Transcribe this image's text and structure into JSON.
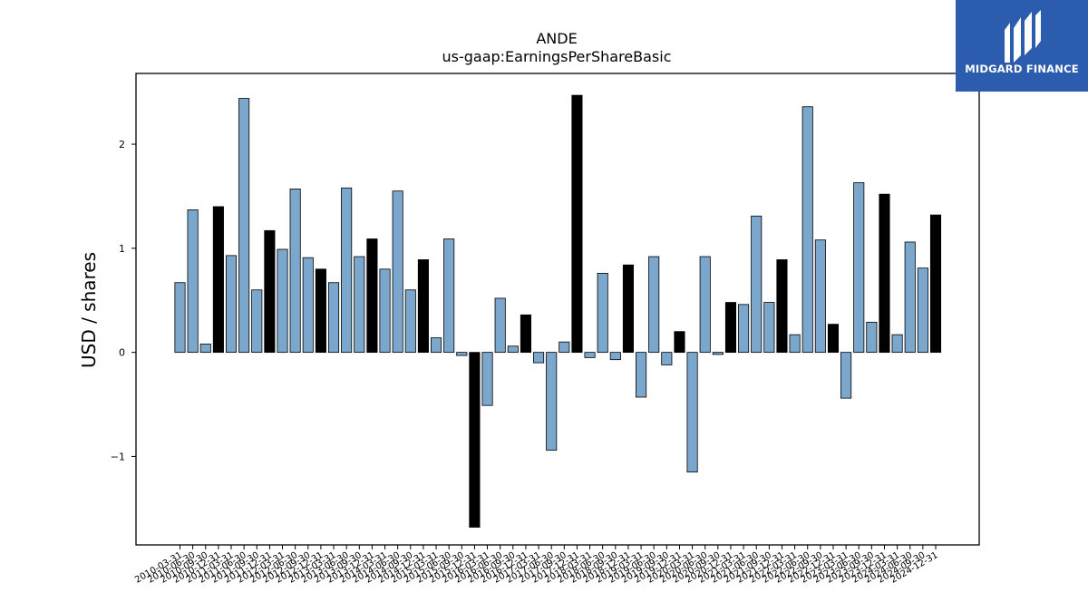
{
  "logo": {
    "text": "MIDGARD FINANCE",
    "icon": "midgard-logo-icon"
  },
  "chart_data": {
    "type": "bar",
    "title": "ANDE",
    "subtitle": "us-gaap:EarningsPerShareBasic",
    "ylabel": "USD / shares",
    "xlabel": "",
    "ylim": [
      -1.85,
      2.68
    ],
    "yticks": [
      -1,
      0,
      1,
      2
    ],
    "grid": false,
    "colors": {
      "quarterly": "#7ba7cc",
      "annual": "#000000",
      "edge": "#000000"
    },
    "categories": [
      "2010-03-31",
      "2010-06-30",
      "2010-09-30",
      "2010-12-31",
      "2011-03-31",
      "2011-06-30",
      "2011-09-30",
      "2011-12-31",
      "2012-03-31",
      "2012-06-30",
      "2012-09-30",
      "2012-12-31",
      "2013-03-31",
      "2013-06-30",
      "2013-09-30",
      "2013-12-31",
      "2014-03-31",
      "2014-06-30",
      "2014-09-30",
      "2014-12-31",
      "2015-03-31",
      "2015-06-30",
      "2015-09-30",
      "2015-12-31",
      "2016-03-31",
      "2016-06-30",
      "2016-09-30",
      "2016-12-31",
      "2017-03-31",
      "2017-06-30",
      "2017-09-30",
      "2017-12-31",
      "2018-03-31",
      "2018-06-30",
      "2018-09-30",
      "2018-12-31",
      "2019-03-31",
      "2019-06-30",
      "2019-09-30",
      "2019-12-31",
      "2020-03-31",
      "2020-06-30",
      "2020-09-30",
      "2020-12-31",
      "2021-03-31",
      "2021-06-30",
      "2021-09-30",
      "2021-12-31",
      "2022-03-31",
      "2022-06-30",
      "2022-09-30",
      "2022-12-31",
      "2023-03-31",
      "2023-06-30",
      "2023-09-30",
      "2023-12-31",
      "2024-03-31",
      "2024-06-30",
      "2024-09-30",
      "2024-12-31"
    ],
    "values": [
      0.67,
      1.37,
      0.08,
      1.4,
      0.93,
      2.44,
      0.6,
      1.17,
      0.99,
      1.57,
      0.91,
      0.8,
      0.67,
      1.58,
      0.92,
      1.09,
      0.8,
      1.55,
      0.6,
      0.89,
      0.14,
      1.09,
      -0.03,
      -1.68,
      -0.51,
      0.52,
      0.06,
      0.36,
      -0.1,
      -0.94,
      0.1,
      2.47,
      -0.05,
      0.76,
      -0.07,
      0.84,
      -0.43,
      0.92,
      -0.12,
      0.2,
      -1.15,
      0.92,
      -0.02,
      0.48,
      0.46,
      1.31,
      0.48,
      0.89,
      0.17,
      2.36,
      1.08,
      0.27,
      -0.44,
      1.63,
      0.29,
      1.52,
      0.17,
      1.06,
      0.81,
      1.32
    ],
    "annual_flags": [
      0,
      0,
      0,
      1,
      0,
      0,
      0,
      1,
      0,
      0,
      0,
      1,
      0,
      0,
      0,
      1,
      0,
      0,
      0,
      1,
      0,
      0,
      0,
      1,
      0,
      0,
      0,
      1,
      0,
      0,
      0,
      1,
      0,
      0,
      0,
      1,
      0,
      0,
      0,
      1,
      0,
      0,
      0,
      1,
      0,
      0,
      0,
      1,
      0,
      0,
      0,
      1,
      0,
      0,
      0,
      1,
      0,
      0,
      0,
      1
    ]
  }
}
